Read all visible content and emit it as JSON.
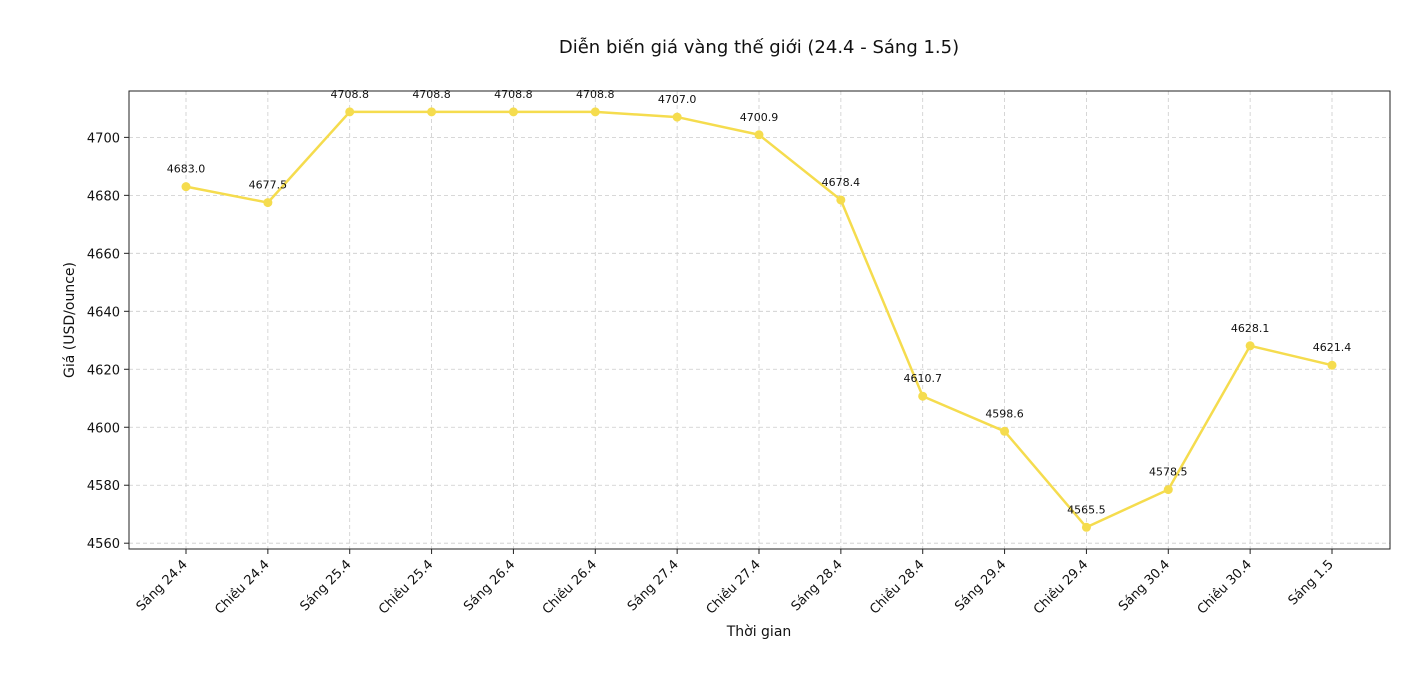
{
  "chart_data": {
    "type": "line",
    "title": "Diễn biến giá vàng thế giới (24.4 - Sáng 1.5)",
    "xlabel": "Thời gian",
    "ylabel": "Giá (USD/ounce)",
    "categories": [
      "Sáng 24.4",
      "Chiều 24.4",
      "Sáng 25.4",
      "Chiều 25.4",
      "Sáng 26.4",
      "Chiều 26.4",
      "Sáng 27.4",
      "Chiều 27.4",
      "Sáng 28.4",
      "Chiều 28.4",
      "Sáng 29.4",
      "Chiều 29.4",
      "Sáng 30.4",
      "Chiều 30.4",
      "Sáng 1.5"
    ],
    "values": [
      4683.0,
      4677.5,
      4708.8,
      4708.8,
      4708.8,
      4708.8,
      4707.0,
      4700.9,
      4678.4,
      4610.7,
      4598.6,
      4565.5,
      4578.5,
      4628.1,
      4621.4
    ],
    "data_labels": [
      "4683.0",
      "4677.5",
      "4708.8",
      "4708.8",
      "4708.8",
      "4708.8",
      "4707.0",
      "4700.9",
      "4678.4",
      "4610.7",
      "4598.6",
      "4565.5",
      "4578.5",
      "4628.1",
      "4621.4"
    ],
    "yticks": [
      4560,
      4580,
      4600,
      4620,
      4640,
      4660,
      4680,
      4700
    ],
    "ylim": [
      4558,
      4716
    ],
    "grid": true,
    "line_color": "#f5dc4e",
    "marker_color": "#f5dc4e",
    "grid_color": "#cccccc"
  }
}
